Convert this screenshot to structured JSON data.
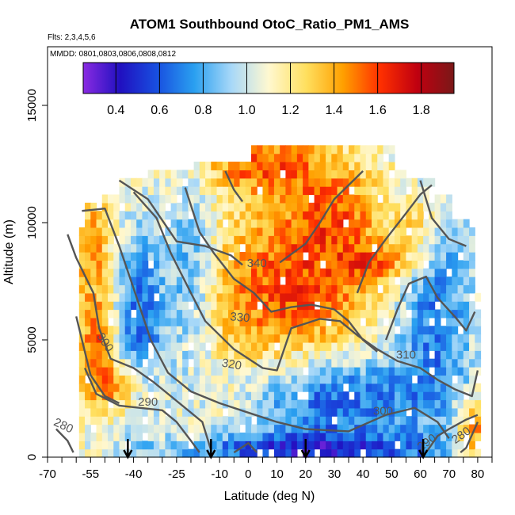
{
  "chart_data": {
    "type": "heatmap",
    "title": "ATOM1 Southbound OtoC_Ratio_PM1_AMS",
    "subtitle_flights": "Flts: 2,3,4,5,6",
    "subtitle_dates": "MMDD: 0801,0803,0806,0808,0812",
    "xlabel": "Latitude (deg N)",
    "ylabel": "Altitude (m)",
    "xlim": [
      -70,
      85
    ],
    "ylim": [
      0,
      17500
    ],
    "x_ticks": [
      -70,
      -55,
      -40,
      -25,
      -10,
      0,
      10,
      20,
      30,
      40,
      50,
      60,
      70,
      80
    ],
    "x_tick_labels": [
      "-70",
      "-55",
      "-40",
      "-25",
      "-10",
      "0",
      "10",
      "20",
      "30",
      "40",
      "50",
      "60",
      "70",
      "80"
    ],
    "y_ticks": [
      0,
      5000,
      10000,
      15000
    ],
    "y_tick_labels": [
      "0",
      "5000",
      "10000",
      "15000"
    ],
    "colorbar": {
      "range": [
        0.25,
        1.95
      ],
      "ticks": [
        0.4,
        0.6,
        0.8,
        1.0,
        1.2,
        1.4,
        1.6,
        1.8
      ],
      "tick_labels": [
        "0.4",
        "0.6",
        "0.8",
        "1.0",
        "1.2",
        "1.4",
        "1.6",
        "1.8"
      ],
      "colors": [
        "#8a2be2",
        "#2010c0",
        "#1850e0",
        "#2aa0f0",
        "#a8d8f8",
        "#fff8d0",
        "#ffe060",
        "#ffa000",
        "#ff3000",
        "#c00010",
        "#7a1818"
      ]
    },
    "contour_color": "#555555",
    "contour_labels": [
      {
        "text": "280",
        "lat": -65,
        "alt": 1200
      },
      {
        "text": "290",
        "lat": -35,
        "alt": 2200
      },
      {
        "text": "300",
        "lat": -51,
        "alt": 4800
      },
      {
        "text": "310",
        "lat": 55,
        "alt": 4200
      },
      {
        "text": "320",
        "lat": -6,
        "alt": 3800
      },
      {
        "text": "330",
        "lat": -3,
        "alt": 5800
      },
      {
        "text": "340",
        "lat": 3,
        "alt": 8100
      },
      {
        "text": "300",
        "lat": 47,
        "alt": 1800
      },
      {
        "text": "290",
        "lat": 63,
        "alt": 500
      },
      {
        "text": "280",
        "lat": 75,
        "alt": 800
      }
    ],
    "arrows_lat": [
      -42,
      -13,
      20,
      61
    ]
  }
}
